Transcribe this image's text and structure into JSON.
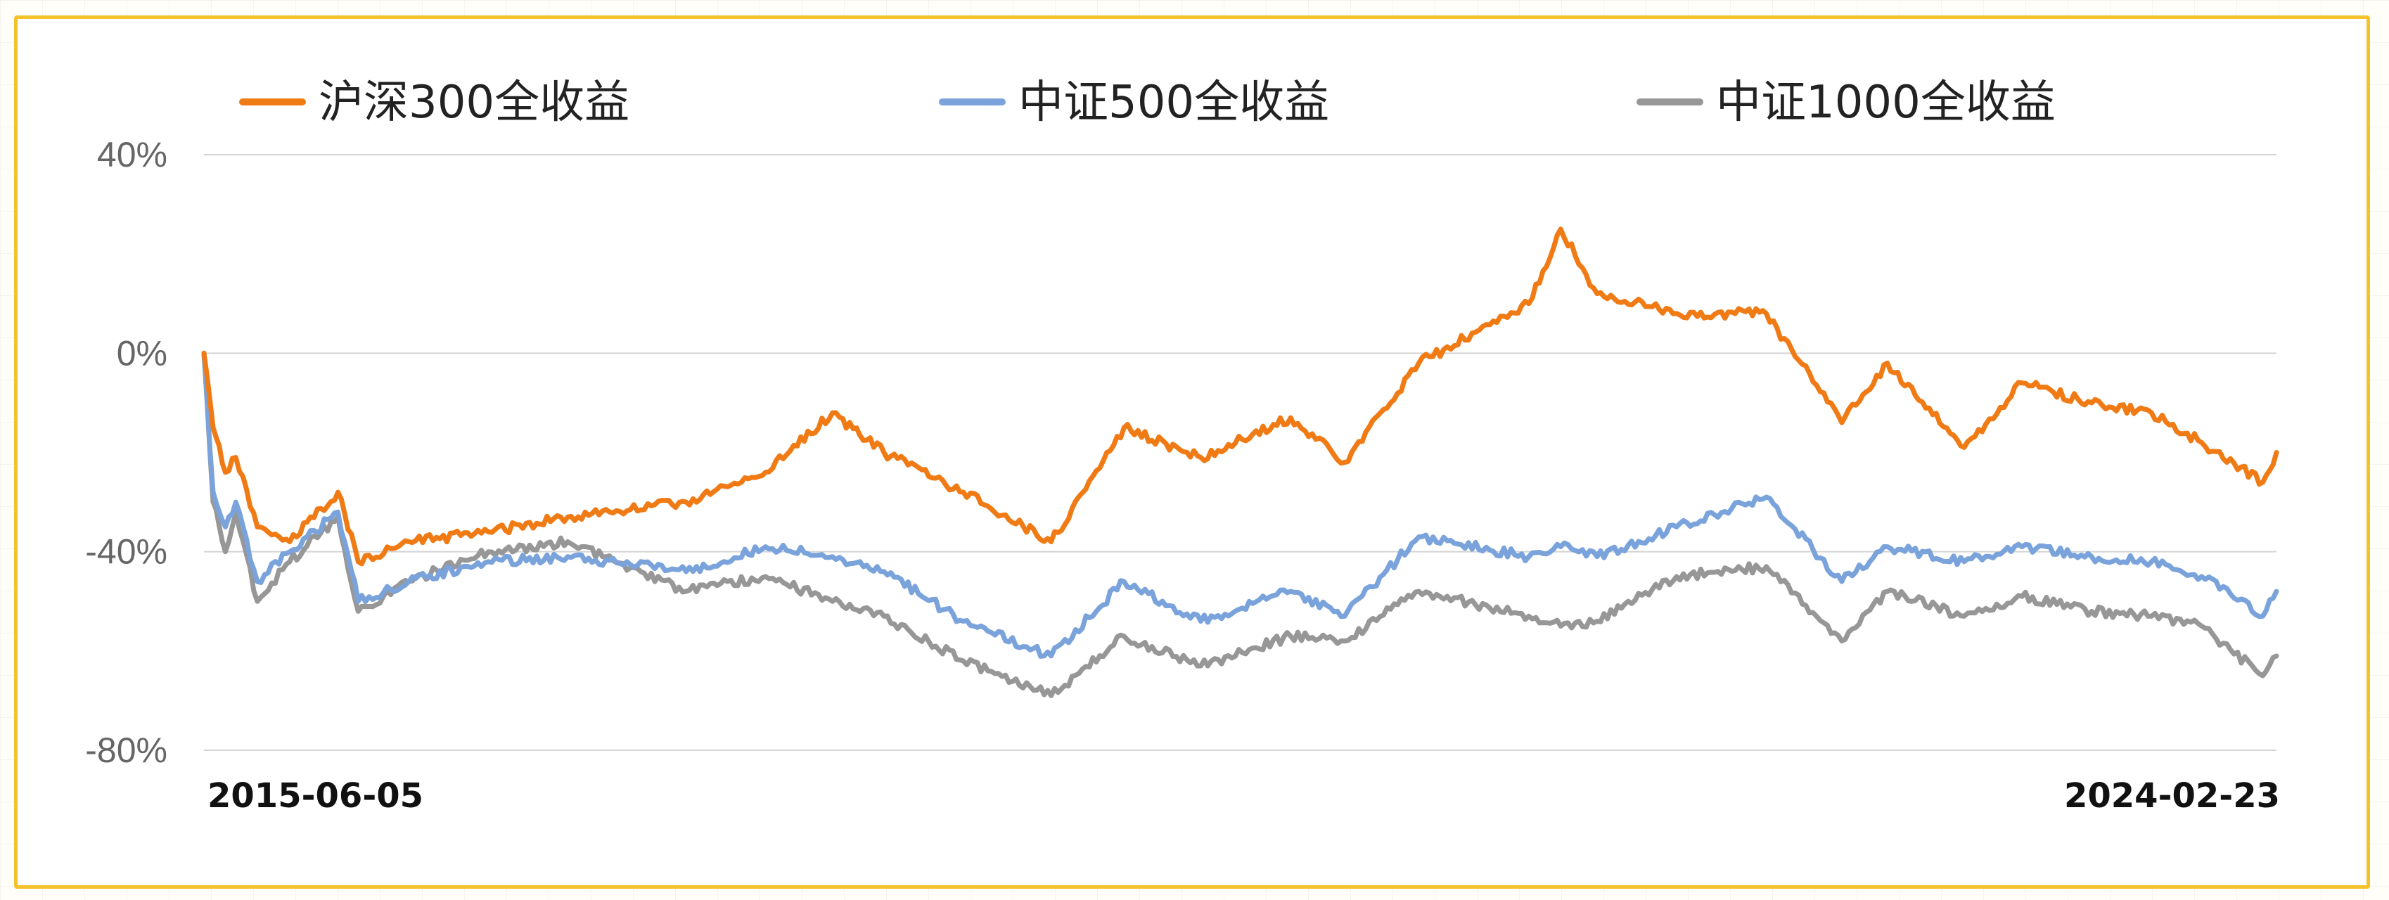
{
  "chart_data": {
    "type": "line",
    "title": "",
    "xlabel": "",
    "ylabel": "",
    "x_start": "2015-06-05",
    "x_end": "2024-02-23",
    "x_tick_labels": [
      "2015-06-05",
      "2024-02-23"
    ],
    "y_ticks": [
      40,
      0,
      -40,
      -80
    ],
    "y_tick_labels": [
      "40%",
      "0%",
      "-40%",
      "-80%"
    ],
    "ylim": [
      -80,
      40
    ],
    "grid": "horizontal",
    "legend": "top",
    "series": [
      {
        "name": "沪深300全收益",
        "color": "#f07a14",
        "points": [
          [
            "2015-06-05",
            0
          ],
          [
            "2015-06-19",
            -15
          ],
          [
            "2015-07-08",
            -24
          ],
          [
            "2015-07-24",
            -21
          ],
          [
            "2015-08-26",
            -35
          ],
          [
            "2015-10-15",
            -38
          ],
          [
            "2015-12-28",
            -28
          ],
          [
            "2016-01-28",
            -42
          ],
          [
            "2016-04-15",
            -38
          ],
          [
            "2016-08-15",
            -36
          ],
          [
            "2016-12-15",
            -33
          ],
          [
            "2017-06-15",
            -30
          ],
          [
            "2017-10-15",
            -24
          ],
          [
            "2018-01-26",
            -12
          ],
          [
            "2018-04-15",
            -20
          ],
          [
            "2018-08-15",
            -28
          ],
          [
            "2018-12-28",
            -38
          ],
          [
            "2019-04-19",
            -15
          ],
          [
            "2019-08-15",
            -21
          ],
          [
            "2019-12-31",
            -13
          ],
          [
            "2020-03-23",
            -22
          ],
          [
            "2020-07-15",
            -2
          ],
          [
            "2020-12-31",
            10
          ],
          [
            "2021-02-18",
            25
          ],
          [
            "2021-04-15",
            12
          ],
          [
            "2021-08-15",
            8
          ],
          [
            "2021-12-31",
            8
          ],
          [
            "2022-04-26",
            -14
          ],
          [
            "2022-07-05",
            -2
          ],
          [
            "2022-10-31",
            -19
          ],
          [
            "2023-01-28",
            -6
          ],
          [
            "2023-05-15",
            -10
          ],
          [
            "2023-08-15",
            -12
          ],
          [
            "2023-10-31",
            -18
          ],
          [
            "2024-02-02",
            -26
          ],
          [
            "2024-02-23",
            -20
          ]
        ]
      },
      {
        "name": "中证500全收益",
        "color": "#7aa3dc",
        "points": [
          [
            "2015-06-05",
            0
          ],
          [
            "2015-06-19",
            -28
          ],
          [
            "2015-07-08",
            -35
          ],
          [
            "2015-07-24",
            -30
          ],
          [
            "2015-08-26",
            -46
          ],
          [
            "2015-10-15",
            -40
          ],
          [
            "2015-12-28",
            -32
          ],
          [
            "2016-01-28",
            -50
          ],
          [
            "2016-04-15",
            -46
          ],
          [
            "2016-08-15",
            -42
          ],
          [
            "2016-12-15",
            -41
          ],
          [
            "2017-06-15",
            -44
          ],
          [
            "2017-10-15",
            -39
          ],
          [
            "2018-01-26",
            -41
          ],
          [
            "2018-04-15",
            -44
          ],
          [
            "2018-08-15",
            -54
          ],
          [
            "2018-12-28",
            -61
          ],
          [
            "2019-04-19",
            -46
          ],
          [
            "2019-08-15",
            -54
          ],
          [
            "2019-12-31",
            -48
          ],
          [
            "2020-03-23",
            -53
          ],
          [
            "2020-07-15",
            -37
          ],
          [
            "2020-12-31",
            -41
          ],
          [
            "2021-02-18",
            -39
          ],
          [
            "2021-04-15",
            -41
          ],
          [
            "2021-08-15",
            -35
          ],
          [
            "2021-12-31",
            -29
          ],
          [
            "2022-04-26",
            -46
          ],
          [
            "2022-07-05",
            -39
          ],
          [
            "2022-10-31",
            -42
          ],
          [
            "2023-01-28",
            -39
          ],
          [
            "2023-05-15",
            -41
          ],
          [
            "2023-08-15",
            -42
          ],
          [
            "2023-10-31",
            -45
          ],
          [
            "2024-02-02",
            -53
          ],
          [
            "2024-02-23",
            -48
          ]
        ]
      },
      {
        "name": "中证1000全收益",
        "color": "#979797",
        "points": [
          [
            "2015-06-05",
            0
          ],
          [
            "2015-06-19",
            -30
          ],
          [
            "2015-07-08",
            -40
          ],
          [
            "2015-07-24",
            -32
          ],
          [
            "2015-08-26",
            -50
          ],
          [
            "2015-10-15",
            -42
          ],
          [
            "2015-12-28",
            -33
          ],
          [
            "2016-01-28",
            -52
          ],
          [
            "2016-04-15",
            -46
          ],
          [
            "2016-08-15",
            -40
          ],
          [
            "2016-12-15",
            -38
          ],
          [
            "2017-06-15",
            -48
          ],
          [
            "2017-10-15",
            -45
          ],
          [
            "2018-01-26",
            -50
          ],
          [
            "2018-04-15",
            -53
          ],
          [
            "2018-08-15",
            -62
          ],
          [
            "2018-12-28",
            -69
          ],
          [
            "2019-04-19",
            -57
          ],
          [
            "2019-08-15",
            -63
          ],
          [
            "2019-12-31",
            -57
          ],
          [
            "2020-03-23",
            -58
          ],
          [
            "2020-07-15",
            -48
          ],
          [
            "2020-12-31",
            -53
          ],
          [
            "2021-02-18",
            -55
          ],
          [
            "2021-04-15",
            -54
          ],
          [
            "2021-08-15",
            -45
          ],
          [
            "2021-12-31",
            -43
          ],
          [
            "2022-04-26",
            -58
          ],
          [
            "2022-07-05",
            -48
          ],
          [
            "2022-10-31",
            -53
          ],
          [
            "2023-01-28",
            -49
          ],
          [
            "2023-05-15",
            -52
          ],
          [
            "2023-08-15",
            -53
          ],
          [
            "2023-10-31",
            -55
          ],
          [
            "2024-02-02",
            -65
          ],
          [
            "2024-02-23",
            -61
          ]
        ]
      }
    ]
  }
}
